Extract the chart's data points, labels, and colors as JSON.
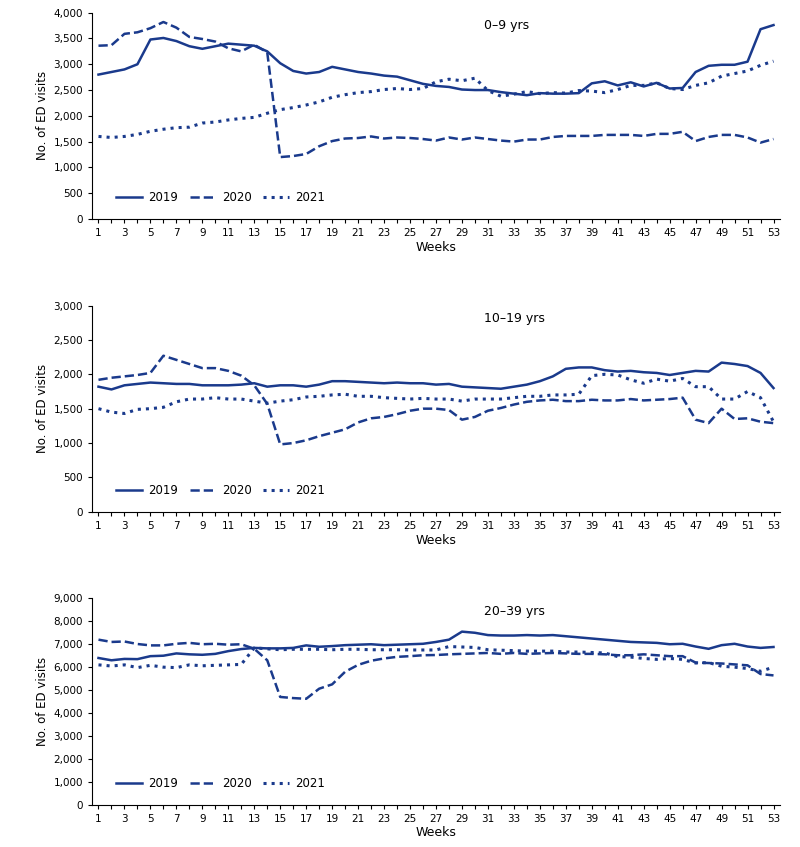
{
  "weeks": [
    1,
    2,
    3,
    4,
    5,
    6,
    7,
    8,
    9,
    10,
    11,
    12,
    13,
    14,
    15,
    16,
    17,
    18,
    19,
    20,
    21,
    22,
    23,
    24,
    25,
    26,
    27,
    28,
    29,
    30,
    31,
    32,
    33,
    34,
    35,
    36,
    37,
    38,
    39,
    40,
    41,
    42,
    43,
    44,
    45,
    46,
    47,
    48,
    49,
    50,
    51,
    52,
    53
  ],
  "panel1": {
    "title": "0–9 yrs",
    "ylabel": "No. of ED visits",
    "xlabel": "Weeks",
    "ylim": [
      0,
      4000
    ],
    "yticks": [
      0,
      500,
      1000,
      1500,
      2000,
      2500,
      3000,
      3500,
      4000
    ],
    "y2019": [
      2800,
      2850,
      2900,
      3000,
      3480,
      3510,
      3450,
      3350,
      3300,
      3350,
      3400,
      3380,
      3360,
      3250,
      3020,
      2870,
      2820,
      2850,
      2950,
      2900,
      2850,
      2820,
      2780,
      2760,
      2690,
      2620,
      2580,
      2560,
      2510,
      2500,
      2500,
      2460,
      2430,
      2400,
      2440,
      2430,
      2430,
      2440,
      2630,
      2670,
      2590,
      2650,
      2570,
      2640,
      2530,
      2540,
      2850,
      2970,
      2990,
      2990,
      3050,
      3680,
      3760
    ],
    "y2020": [
      3360,
      3370,
      3590,
      3620,
      3700,
      3820,
      3710,
      3530,
      3490,
      3440,
      3310,
      3250,
      3380,
      3230,
      1200,
      1220,
      1260,
      1410,
      1510,
      1560,
      1570,
      1600,
      1560,
      1580,
      1570,
      1550,
      1520,
      1580,
      1540,
      1580,
      1550,
      1520,
      1500,
      1540,
      1540,
      1590,
      1610,
      1610,
      1610,
      1630,
      1630,
      1630,
      1610,
      1650,
      1650,
      1690,
      1510,
      1590,
      1630,
      1630,
      1580,
      1480,
      1550
    ],
    "y2021": [
      1600,
      1580,
      1600,
      1640,
      1700,
      1740,
      1770,
      1780,
      1860,
      1880,
      1920,
      1950,
      1970,
      2050,
      2120,
      2160,
      2210,
      2270,
      2360,
      2410,
      2450,
      2470,
      2510,
      2530,
      2510,
      2530,
      2660,
      2710,
      2680,
      2730,
      2490,
      2380,
      2420,
      2470,
      2430,
      2450,
      2440,
      2490,
      2480,
      2450,
      2510,
      2590,
      2590,
      2640,
      2530,
      2510,
      2590,
      2640,
      2770,
      2820,
      2870,
      2980,
      3060
    ]
  },
  "panel2": {
    "title": "10–19 yrs",
    "ylabel": "No. of ED visits",
    "xlabel": "Weeks",
    "ylim": [
      0,
      3000
    ],
    "yticks": [
      0,
      500,
      1000,
      1500,
      2000,
      2500,
      3000
    ],
    "y2019": [
      1820,
      1780,
      1840,
      1860,
      1880,
      1870,
      1860,
      1860,
      1840,
      1840,
      1840,
      1850,
      1870,
      1820,
      1840,
      1840,
      1820,
      1850,
      1900,
      1900,
      1890,
      1880,
      1870,
      1880,
      1870,
      1870,
      1850,
      1860,
      1820,
      1810,
      1800,
      1790,
      1820,
      1850,
      1900,
      1970,
      2080,
      2100,
      2100,
      2060,
      2040,
      2050,
      2030,
      2020,
      1990,
      2020,
      2050,
      2040,
      2170,
      2150,
      2120,
      2020,
      1800
    ],
    "y2020": [
      1920,
      1950,
      1970,
      1990,
      2020,
      2270,
      2210,
      2150,
      2090,
      2090,
      2050,
      1980,
      1840,
      1570,
      980,
      1000,
      1040,
      1100,
      1150,
      1200,
      1300,
      1360,
      1380,
      1420,
      1470,
      1500,
      1500,
      1480,
      1340,
      1380,
      1470,
      1510,
      1560,
      1600,
      1620,
      1630,
      1610,
      1610,
      1630,
      1620,
      1620,
      1640,
      1620,
      1630,
      1640,
      1660,
      1340,
      1290,
      1500,
      1350,
      1360,
      1310,
      1290
    ],
    "y2021": [
      1500,
      1450,
      1430,
      1490,
      1500,
      1520,
      1600,
      1640,
      1640,
      1660,
      1640,
      1640,
      1610,
      1580,
      1610,
      1630,
      1670,
      1680,
      1700,
      1710,
      1680,
      1680,
      1660,
      1650,
      1640,
      1650,
      1640,
      1640,
      1610,
      1640,
      1640,
      1640,
      1660,
      1680,
      1680,
      1700,
      1700,
      1710,
      1980,
      2000,
      1990,
      1920,
      1870,
      1930,
      1900,
      1940,
      1820,
      1820,
      1640,
      1640,
      1750,
      1660,
      1310
    ]
  },
  "panel3": {
    "title": "20–39 yrs",
    "ylabel": "No. of ED visits",
    "xlabel": "Weeks",
    "ylim": [
      0,
      9000
    ],
    "yticks": [
      0,
      1000,
      2000,
      3000,
      4000,
      5000,
      6000,
      7000,
      8000,
      9000
    ],
    "y2019": [
      6400,
      6300,
      6360,
      6350,
      6480,
      6500,
      6600,
      6560,
      6540,
      6580,
      6700,
      6790,
      6840,
      6820,
      6820,
      6840,
      6950,
      6890,
      6920,
      6960,
      6980,
      7000,
      6960,
      6980,
      7000,
      7020,
      7100,
      7200,
      7550,
      7500,
      7400,
      7380,
      7380,
      7400,
      7380,
      7400,
      7350,
      7300,
      7250,
      7200,
      7150,
      7100,
      7080,
      7060,
      7000,
      7020,
      6900,
      6800,
      6960,
      7020,
      6900,
      6840,
      6880
    ],
    "y2020": [
      7200,
      7100,
      7120,
      7010,
      6950,
      6950,
      7020,
      7060,
      7000,
      7020,
      6980,
      7000,
      6800,
      6300,
      4700,
      4650,
      4620,
      5060,
      5250,
      5800,
      6100,
      6280,
      6380,
      6450,
      6480,
      6520,
      6530,
      6560,
      6580,
      6600,
      6620,
      6580,
      6620,
      6580,
      6600,
      6620,
      6600,
      6580,
      6580,
      6560,
      6520,
      6520,
      6560,
      6520,
      6480,
      6480,
      6200,
      6180,
      6160,
      6120,
      6080,
      5700,
      5640
    ],
    "y2021": [
      6100,
      6050,
      6100,
      5980,
      6080,
      6000,
      5980,
      6100,
      6060,
      6080,
      6100,
      6120,
      6840,
      6800,
      6760,
      6780,
      6780,
      6780,
      6760,
      6780,
      6780,
      6760,
      6760,
      6760,
      6750,
      6750,
      6750,
      6900,
      6880,
      6860,
      6760,
      6740,
      6720,
      6700,
      6700,
      6700,
      6660,
      6660,
      6640,
      6620,
      6460,
      6440,
      6380,
      6340,
      6380,
      6340,
      6180,
      6200,
      6040,
      6000,
      5940,
      5820,
      6000
    ]
  },
  "line_color": "#1a3a8c",
  "legend_labels": [
    "2019",
    "2020",
    "2021"
  ],
  "legend_linestyles": [
    "-",
    "--",
    ":"
  ],
  "legend_linewidths": [
    1.8,
    1.8,
    2.2
  ]
}
